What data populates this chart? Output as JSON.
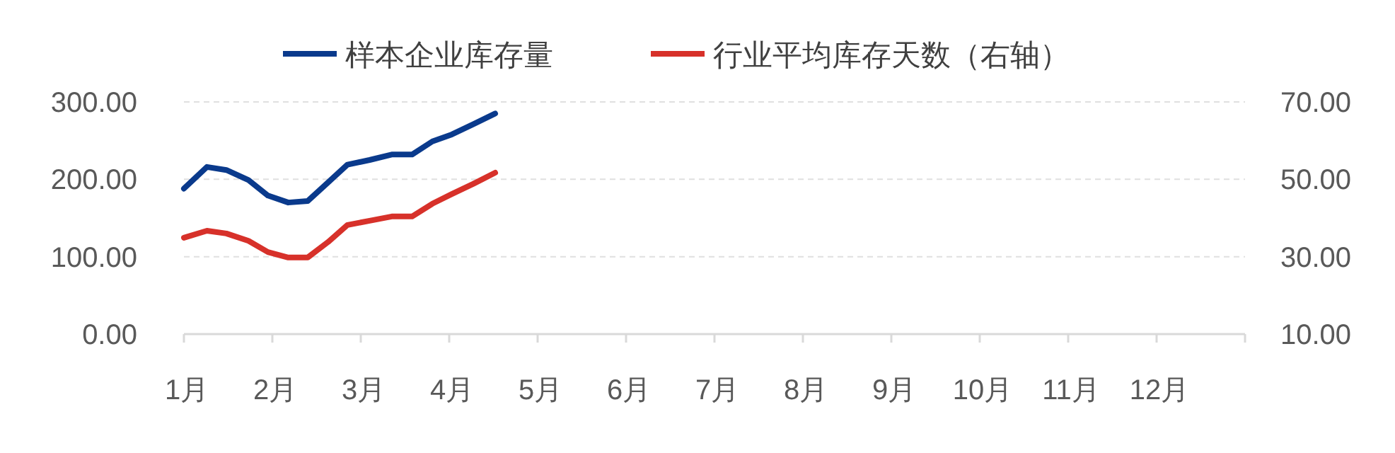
{
  "chart_data": {
    "type": "line",
    "x": [
      1,
      1.26,
      1.48,
      1.73,
      1.95,
      2.18,
      2.4,
      2.63,
      2.85,
      3.1,
      3.35,
      3.58,
      3.81,
      4.03,
      4.27,
      4.52
    ],
    "series": [
      {
        "name": "样本企业库存量",
        "color": "#0a3a8c",
        "values": [
          188,
          216,
          212,
          199,
          179,
          170,
          172,
          196,
          219,
          225,
          232,
          232,
          249,
          258,
          271,
          285
        ]
      },
      {
        "name": "行业平均库存天数（右轴）",
        "color": "#d7312a",
        "axis": "y2",
        "values": [
          34.9,
          36.7,
          36.0,
          34.1,
          31.2,
          29.8,
          29.8,
          33.8,
          38.2,
          39.3,
          40.4,
          40.4,
          43.7,
          46.2,
          48.8,
          51.7
        ]
      }
    ],
    "xlim": [
      1,
      13
    ],
    "xticks": [
      {
        "value": 1,
        "label": "1月"
      },
      {
        "value": 2,
        "label": "2月"
      },
      {
        "value": 3,
        "label": "3月"
      },
      {
        "value": 4,
        "label": "4月"
      },
      {
        "value": 5,
        "label": "5月"
      },
      {
        "value": 6,
        "label": "6月"
      },
      {
        "value": 7,
        "label": "7月"
      },
      {
        "value": 8,
        "label": "8月"
      },
      {
        "value": 9,
        "label": "9月"
      },
      {
        "value": 10,
        "label": "10月"
      },
      {
        "value": 11,
        "label": "11月"
      },
      {
        "value": 12,
        "label": "12月"
      },
      {
        "value": 13,
        "label": null
      }
    ],
    "ylim": [
      0,
      300
    ],
    "yticks": [
      {
        "value": 0,
        "label": "0.00"
      },
      {
        "value": 100,
        "label": "100.00"
      },
      {
        "value": 200,
        "label": "200.00"
      },
      {
        "value": 300,
        "label": "300.00"
      }
    ],
    "y2lim": [
      10,
      70
    ],
    "y2ticks": [
      {
        "value": 10,
        "label": "10.00"
      },
      {
        "value": 30,
        "label": "30.00"
      },
      {
        "value": 50,
        "label": "50.00"
      },
      {
        "value": 70,
        "label": "70.00"
      }
    ],
    "grid": "y",
    "legend": "top",
    "marker": "none",
    "line_style": "solid"
  }
}
